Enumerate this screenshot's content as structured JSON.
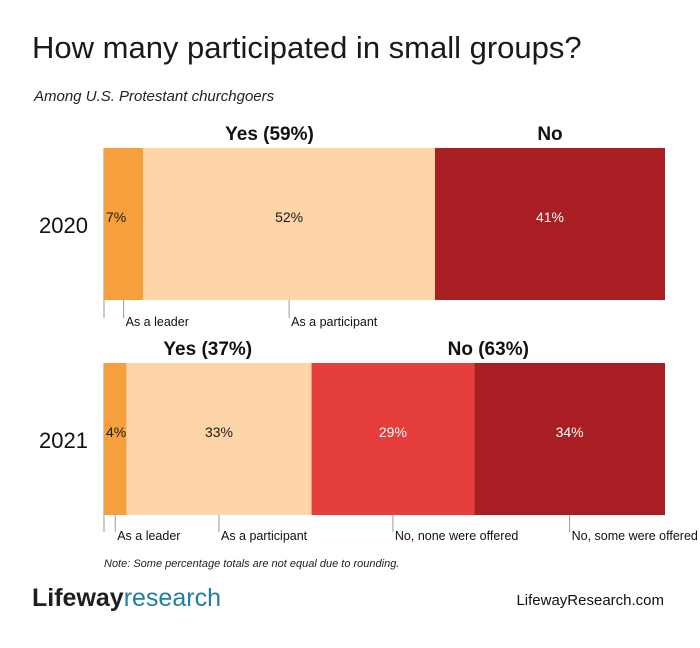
{
  "title": "How many participated in small groups?",
  "subtitle": "Among U.S. Protestant churchgoers",
  "note": "Note: Some percentage totals are not equal due to rounding.",
  "logo": {
    "part1": "Lifeway",
    "part2": "research"
  },
  "site": "LifewayResearch.com",
  "colors": {
    "leader": "#f5a03c",
    "participant": "#fdd5a8",
    "none_offered": "#e63e3c",
    "some_offered": "#a91e22",
    "no_2020": "#a91e22"
  },
  "chart_data": {
    "type": "bar",
    "orientation": "horizontal",
    "stacked": true,
    "categories": [
      "2020",
      "2021"
    ],
    "rows": [
      {
        "year": "2020",
        "groups": [
          {
            "label": "Yes (59%)",
            "span": [
              0,
              59
            ]
          },
          {
            "label": "No",
            "span": [
              59,
              100
            ]
          }
        ],
        "segments": [
          {
            "label": "7%",
            "value": 7,
            "color_key": "leader",
            "annotation": "As a leader",
            "text_color": "#1a1a1a"
          },
          {
            "label": "52%",
            "value": 52,
            "color_key": "participant",
            "annotation": "As a participant",
            "text_color": "#1a1a1a"
          },
          {
            "label": "41%",
            "value": 41,
            "color_key": "no_2020",
            "annotation": "",
            "text_color": "#ffffff"
          }
        ]
      },
      {
        "year": "2021",
        "groups": [
          {
            "label": "Yes (37%)",
            "span": [
              0,
              37
            ]
          },
          {
            "label": "No (63%)",
            "span": [
              37,
              100
            ]
          }
        ],
        "segments": [
          {
            "label": "4%",
            "value": 4,
            "color_key": "leader",
            "annotation": "As a leader",
            "text_color": "#1a1a1a"
          },
          {
            "label": "33%",
            "value": 33,
            "color_key": "participant",
            "annotation": "As a participant",
            "text_color": "#1a1a1a"
          },
          {
            "label": "29%",
            "value": 29,
            "color_key": "none_offered",
            "annotation": "No, none were offered",
            "text_color": "#ffffff"
          },
          {
            "label": "34%",
            "value": 34,
            "color_key": "some_offered",
            "annotation": "No, some were offered",
            "text_color": "#ffffff"
          }
        ]
      }
    ]
  }
}
